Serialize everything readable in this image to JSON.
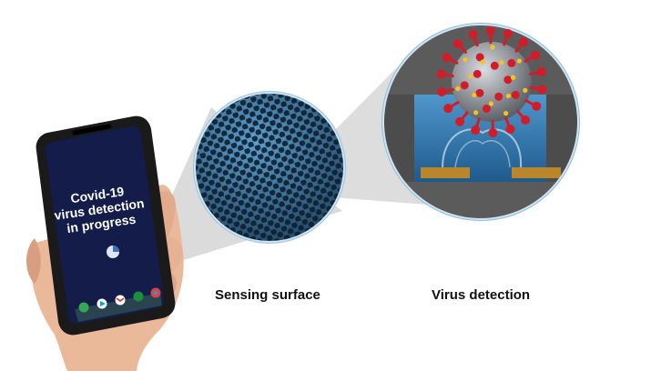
{
  "phone": {
    "screen_lines": [
      "Covid-19",
      "virus detection",
      "in progress"
    ],
    "app_icons": [
      "phone-app-icon",
      "play-store-icon",
      "gmail-icon",
      "messages-icon",
      "chrome-icon"
    ]
  },
  "captions": {
    "sensing": "Sensing surface",
    "virus": "Virus detection"
  },
  "colors": {
    "screen_bg": "#141c4a",
    "sensor_surface": "#2f5f86",
    "chamber_wall": "#545454",
    "fluid": "#3f82b8",
    "electrode": "#b9862c",
    "spike": "#d11c2a",
    "virus_body": "#8e949a",
    "protein_dot": "#f2c520"
  }
}
